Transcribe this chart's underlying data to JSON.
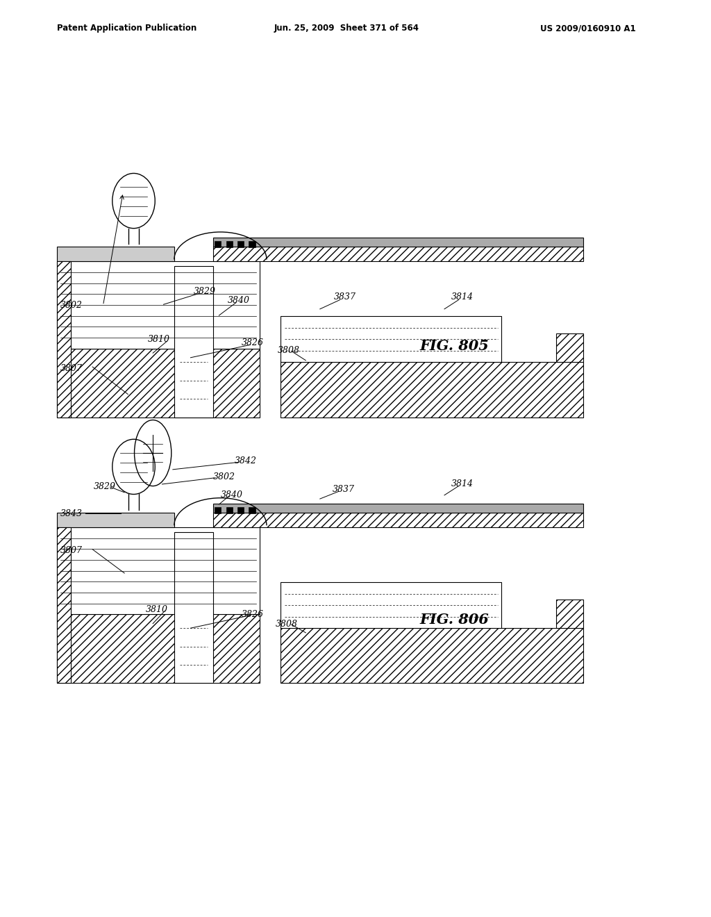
{
  "bg_color": "#ffffff",
  "header_left": "Patent Application Publication",
  "header_mid": "Jun. 25, 2009  Sheet 371 of 564",
  "header_right": "US 2009/0160910 A1",
  "fig1_label": "FIG. 805",
  "fig2_label": "FIG. 806"
}
